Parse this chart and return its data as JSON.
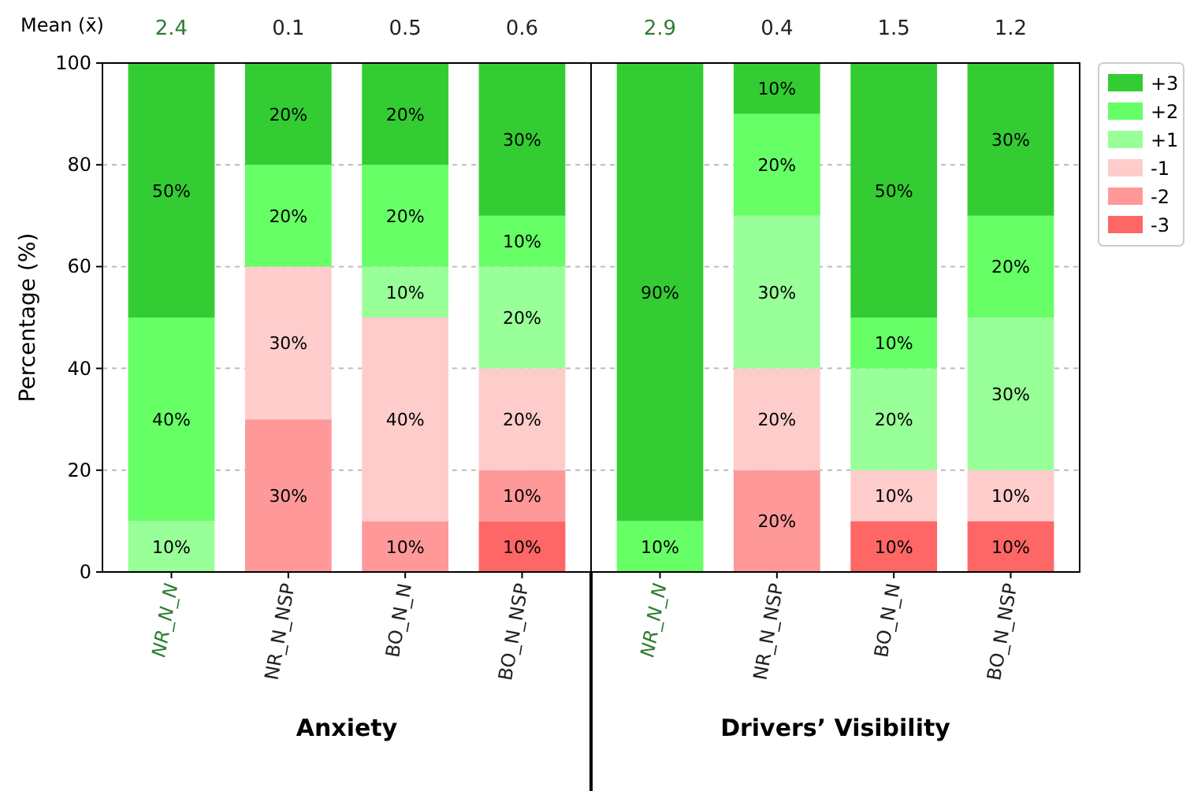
{
  "chart_data": [
    {
      "type": "bar",
      "stacked": true,
      "ylabel": "Percentage (%)",
      "xlabel": "Anxiety",
      "categories": [
        "NR_N_N",
        "NR_N_NSP",
        "BO_N_N",
        "BO_N_NSP"
      ],
      "series": [
        {
          "color": "#ff6666",
          "values": [
            null,
            null,
            null,
            10
          ],
          "value_labels": [
            null,
            null,
            null,
            "10%"
          ]
        },
        {
          "color": "#ff9999",
          "values": [
            null,
            30,
            10,
            10
          ],
          "value_labels": [
            null,
            "30%",
            "10%",
            "10%"
          ]
        },
        {
          "color": "#ffcccc",
          "values": [
            null,
            30,
            40,
            20
          ],
          "value_labels": [
            null,
            "30%",
            "40%",
            "20%"
          ]
        },
        {
          "color": "#99ff99",
          "values": [
            10,
            null,
            10,
            20
          ],
          "value_labels": [
            "10%",
            null,
            "10%",
            "20%"
          ]
        },
        {
          "color": "#66ff66",
          "values": [
            40,
            20,
            20,
            10
          ],
          "value_labels": [
            "40%",
            "20%",
            "20%",
            "10%"
          ]
        },
        {
          "color": "#33cc33",
          "values": [
            50,
            20,
            20,
            30
          ],
          "value_labels": [
            "50%",
            "20%",
            "20%",
            "30%"
          ]
        }
      ],
      "ylim": [
        0,
        100
      ],
      "yticks": [
        0,
        20,
        40,
        60,
        80,
        100
      ],
      "grid": "y",
      "annotations": [
        "Mean (x̄)",
        "2.4",
        "0.1",
        "0.5",
        "0.6"
      ]
    },
    {
      "type": "bar",
      "stacked": true,
      "xlabel": "Drivers’ Visibility",
      "categories": [
        "NR_N_N",
        "NR_N_NSP",
        "BO_N_N",
        "BO_N_NSP"
      ],
      "series": [
        {
          "name": "-3",
          "color": "#ff6666",
          "values": [
            null,
            null,
            10,
            10
          ],
          "value_labels": [
            null,
            null,
            "10%",
            "10%"
          ]
        },
        {
          "name": "-2",
          "color": "#ff9999",
          "values": [
            null,
            20,
            null,
            null
          ],
          "value_labels": [
            null,
            "20%",
            null,
            null
          ]
        },
        {
          "name": "-1",
          "color": "#ffcccc",
          "values": [
            null,
            20,
            10,
            10
          ],
          "value_labels": [
            null,
            "20%",
            "10%",
            "10%"
          ]
        },
        {
          "name": "+1",
          "color": "#99ff99",
          "values": [
            null,
            30,
            20,
            30
          ],
          "value_labels": [
            null,
            "30%",
            "20%",
            "30%"
          ]
        },
        {
          "name": "+2",
          "color": "#66ff66",
          "values": [
            10,
            20,
            10,
            20
          ],
          "value_labels": [
            "10%",
            "20%",
            "10%",
            "20%"
          ]
        },
        {
          "name": "+3",
          "color": "#33cc33",
          "values": [
            90,
            10,
            50,
            30
          ],
          "value_labels": [
            "90%",
            "10%",
            "50%",
            "30%"
          ]
        }
      ],
      "ylim": [
        0,
        100
      ],
      "yticks": [
        0,
        20,
        40,
        60,
        80,
        100
      ],
      "grid": "y",
      "tick_labels": "x",
      "legend": "top right",
      "annotations": [
        "2.9",
        "0.4",
        "1.5",
        "1.2"
      ]
    }
  ]
}
